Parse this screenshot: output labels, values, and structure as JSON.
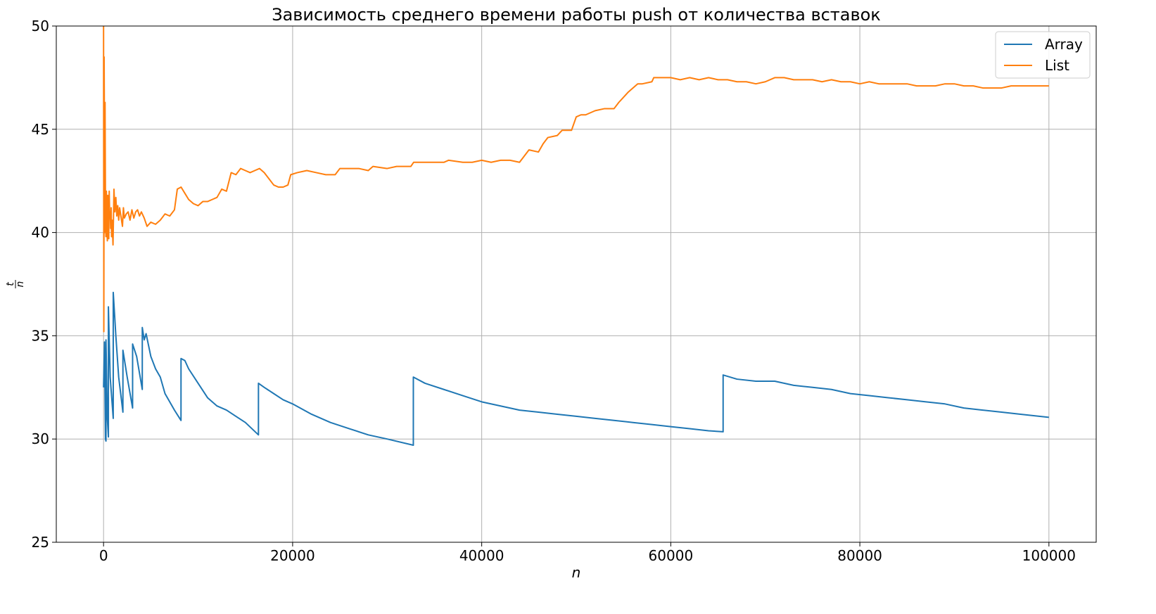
{
  "chart_data": {
    "type": "line",
    "title": "Зависимость среднего времени работы push от количества вставок",
    "xlabel": "n",
    "ylabel_numerator": "t",
    "ylabel_denominator": "n",
    "xlim": [
      -5000,
      105000
    ],
    "ylim": [
      25,
      50
    ],
    "xticks": [
      0,
      20000,
      40000,
      60000,
      80000,
      100000
    ],
    "xtick_labels": [
      "0",
      "20000",
      "40000",
      "60000",
      "80000",
      "100000"
    ],
    "yticks": [
      25,
      30,
      35,
      40,
      45,
      50
    ],
    "ytick_labels": [
      "25",
      "30",
      "35",
      "40",
      "45",
      "50"
    ],
    "grid": true,
    "legend_position": "top-right",
    "series": [
      {
        "name": "Array",
        "color": "#1f77b4",
        "points": [
          [
            0,
            32.5
          ],
          [
            100,
            34.7
          ],
          [
            200,
            30.0
          ],
          [
            256,
            29.9
          ],
          [
            257,
            34.8
          ],
          [
            400,
            31.0
          ],
          [
            512,
            30.1
          ],
          [
            513,
            36.4
          ],
          [
            700,
            33.0
          ],
          [
            1024,
            31.0
          ],
          [
            1025,
            37.1
          ],
          [
            1300,
            35.0
          ],
          [
            1600,
            33.0
          ],
          [
            2048,
            31.3
          ],
          [
            2049,
            34.3
          ],
          [
            2500,
            33.0
          ],
          [
            3072,
            31.5
          ],
          [
            3073,
            34.6
          ],
          [
            3500,
            34.0
          ],
          [
            4096,
            32.4
          ],
          [
            4097,
            35.4
          ],
          [
            4300,
            34.8
          ],
          [
            4500,
            35.1
          ],
          [
            5000,
            34.0
          ],
          [
            5500,
            33.4
          ],
          [
            6000,
            33.0
          ],
          [
            6500,
            32.2
          ],
          [
            7000,
            31.8
          ],
          [
            7500,
            31.4
          ],
          [
            8192,
            30.9
          ],
          [
            8193,
            33.9
          ],
          [
            8600,
            33.8
          ],
          [
            9000,
            33.4
          ],
          [
            10000,
            32.7
          ],
          [
            11000,
            32.0
          ],
          [
            12000,
            31.6
          ],
          [
            13000,
            31.4
          ],
          [
            14000,
            31.1
          ],
          [
            15000,
            30.8
          ],
          [
            16384,
            30.2
          ],
          [
            16385,
            32.7
          ],
          [
            17000,
            32.5
          ],
          [
            18000,
            32.2
          ],
          [
            19000,
            31.9
          ],
          [
            20000,
            31.7
          ],
          [
            22000,
            31.2
          ],
          [
            24000,
            30.8
          ],
          [
            26000,
            30.5
          ],
          [
            28000,
            30.2
          ],
          [
            30000,
            30.0
          ],
          [
            32768,
            29.7
          ],
          [
            32769,
            33.0
          ],
          [
            34000,
            32.7
          ],
          [
            36000,
            32.4
          ],
          [
            38000,
            32.1
          ],
          [
            40000,
            31.8
          ],
          [
            42000,
            31.6
          ],
          [
            44000,
            31.4
          ],
          [
            46000,
            31.3
          ],
          [
            48000,
            31.2
          ],
          [
            50000,
            31.1
          ],
          [
            52000,
            31.0
          ],
          [
            54000,
            30.9
          ],
          [
            56000,
            30.8
          ],
          [
            58000,
            30.7
          ],
          [
            60000,
            30.6
          ],
          [
            62000,
            30.5
          ],
          [
            64000,
            30.4
          ],
          [
            65536,
            30.35
          ],
          [
            65537,
            33.1
          ],
          [
            67000,
            32.9
          ],
          [
            69000,
            32.8
          ],
          [
            71000,
            32.8
          ],
          [
            73000,
            32.6
          ],
          [
            75000,
            32.5
          ],
          [
            77000,
            32.4
          ],
          [
            79000,
            32.2
          ],
          [
            81000,
            32.1
          ],
          [
            83000,
            32.0
          ],
          [
            85000,
            31.9
          ],
          [
            87000,
            31.8
          ],
          [
            89000,
            31.7
          ],
          [
            91000,
            31.5
          ],
          [
            93000,
            31.4
          ],
          [
            95000,
            31.3
          ],
          [
            97000,
            31.2
          ],
          [
            100000,
            31.05
          ]
        ]
      },
      {
        "name": "List",
        "color": "#ff7f0e",
        "points": [
          [
            0,
            50.5
          ],
          [
            30,
            35.2
          ],
          [
            60,
            48.5
          ],
          [
            100,
            44.0
          ],
          [
            130,
            40.0
          ],
          [
            160,
            46.3
          ],
          [
            200,
            41.5
          ],
          [
            250,
            39.8
          ],
          [
            300,
            42.0
          ],
          [
            350,
            40.5
          ],
          [
            400,
            39.6
          ],
          [
            450,
            41.8
          ],
          [
            500,
            40.3
          ],
          [
            550,
            39.7
          ],
          [
            600,
            42.0
          ],
          [
            650,
            40.7
          ],
          [
            700,
            41.0
          ],
          [
            750,
            40.2
          ],
          [
            800,
            41.2
          ],
          [
            850,
            39.8
          ],
          [
            900,
            40.6
          ],
          [
            950,
            40.0
          ],
          [
            1000,
            39.4
          ],
          [
            1100,
            42.1
          ],
          [
            1200,
            41.0
          ],
          [
            1300,
            41.7
          ],
          [
            1400,
            40.8
          ],
          [
            1500,
            41.3
          ],
          [
            1600,
            40.6
          ],
          [
            1700,
            41.2
          ],
          [
            1800,
            40.9
          ],
          [
            2000,
            40.3
          ],
          [
            2100,
            41.2
          ],
          [
            2200,
            40.7
          ],
          [
            2400,
            40.9
          ],
          [
            2600,
            41.0
          ],
          [
            2800,
            40.6
          ],
          [
            3000,
            41.1
          ],
          [
            3200,
            40.7
          ],
          [
            3400,
            41.0
          ],
          [
            3600,
            41.1
          ],
          [
            3800,
            40.8
          ],
          [
            4000,
            41.0
          ],
          [
            4300,
            40.7
          ],
          [
            4600,
            40.3
          ],
          [
            5000,
            40.5
          ],
          [
            5500,
            40.4
          ],
          [
            6000,
            40.6
          ],
          [
            6500,
            40.9
          ],
          [
            7000,
            40.8
          ],
          [
            7500,
            41.1
          ],
          [
            7800,
            42.1
          ],
          [
            8200,
            42.2
          ],
          [
            8600,
            41.9
          ],
          [
            9000,
            41.6
          ],
          [
            9500,
            41.4
          ],
          [
            10000,
            41.3
          ],
          [
            10500,
            41.5
          ],
          [
            11000,
            41.5
          ],
          [
            11500,
            41.6
          ],
          [
            12000,
            41.7
          ],
          [
            12500,
            42.1
          ],
          [
            13000,
            42.0
          ],
          [
            13500,
            42.9
          ],
          [
            14000,
            42.8
          ],
          [
            14500,
            43.1
          ],
          [
            15000,
            43.0
          ],
          [
            15500,
            42.9
          ],
          [
            16000,
            43.0
          ],
          [
            16500,
            43.1
          ],
          [
            17000,
            42.9
          ],
          [
            17500,
            42.6
          ],
          [
            18000,
            42.3
          ],
          [
            18500,
            42.2
          ],
          [
            19000,
            42.2
          ],
          [
            19500,
            42.3
          ],
          [
            19800,
            42.8
          ],
          [
            20500,
            42.9
          ],
          [
            21500,
            43.0
          ],
          [
            22500,
            42.9
          ],
          [
            23500,
            42.8
          ],
          [
            24500,
            42.8
          ],
          [
            25000,
            43.1
          ],
          [
            26000,
            43.1
          ],
          [
            27000,
            43.1
          ],
          [
            28000,
            43.0
          ],
          [
            28500,
            43.2
          ],
          [
            30000,
            43.1
          ],
          [
            31000,
            43.2
          ],
          [
            32500,
            43.2
          ],
          [
            32800,
            43.4
          ],
          [
            34000,
            43.4
          ],
          [
            35000,
            43.4
          ],
          [
            36000,
            43.4
          ],
          [
            36500,
            43.5
          ],
          [
            38000,
            43.4
          ],
          [
            39000,
            43.4
          ],
          [
            40000,
            43.5
          ],
          [
            41000,
            43.4
          ],
          [
            42000,
            43.5
          ],
          [
            43000,
            43.5
          ],
          [
            44000,
            43.4
          ],
          [
            45000,
            44.0
          ],
          [
            46000,
            43.9
          ],
          [
            46500,
            44.3
          ],
          [
            47000,
            44.6
          ],
          [
            48000,
            44.7
          ],
          [
            48500,
            44.95
          ],
          [
            49500,
            44.95
          ],
          [
            50000,
            45.6
          ],
          [
            50500,
            45.7
          ],
          [
            51000,
            45.7
          ],
          [
            52000,
            45.9
          ],
          [
            53000,
            46.0
          ],
          [
            54000,
            46.0
          ],
          [
            54500,
            46.3
          ],
          [
            55500,
            46.8
          ],
          [
            56500,
            47.2
          ],
          [
            57000,
            47.2
          ],
          [
            58000,
            47.3
          ],
          [
            58200,
            47.5
          ],
          [
            59000,
            47.5
          ],
          [
            60000,
            47.5
          ],
          [
            61000,
            47.4
          ],
          [
            62000,
            47.5
          ],
          [
            63000,
            47.4
          ],
          [
            64000,
            47.5
          ],
          [
            65000,
            47.4
          ],
          [
            66000,
            47.4
          ],
          [
            67000,
            47.3
          ],
          [
            68000,
            47.3
          ],
          [
            69000,
            47.2
          ],
          [
            70000,
            47.3
          ],
          [
            71000,
            47.5
          ],
          [
            72000,
            47.5
          ],
          [
            73000,
            47.4
          ],
          [
            74000,
            47.4
          ],
          [
            75000,
            47.4
          ],
          [
            76000,
            47.3
          ],
          [
            77000,
            47.4
          ],
          [
            78000,
            47.3
          ],
          [
            79000,
            47.3
          ],
          [
            80000,
            47.2
          ],
          [
            81000,
            47.3
          ],
          [
            82000,
            47.2
          ],
          [
            83000,
            47.2
          ],
          [
            84000,
            47.2
          ],
          [
            85000,
            47.2
          ],
          [
            86000,
            47.1
          ],
          [
            87000,
            47.1
          ],
          [
            88000,
            47.1
          ],
          [
            89000,
            47.2
          ],
          [
            90000,
            47.2
          ],
          [
            91000,
            47.1
          ],
          [
            92000,
            47.1
          ],
          [
            93000,
            47.0
          ],
          [
            94000,
            47.0
          ],
          [
            95000,
            47.0
          ],
          [
            96000,
            47.1
          ],
          [
            97000,
            47.1
          ],
          [
            98000,
            47.1
          ],
          [
            99000,
            47.1
          ],
          [
            100000,
            47.1
          ]
        ]
      }
    ]
  }
}
